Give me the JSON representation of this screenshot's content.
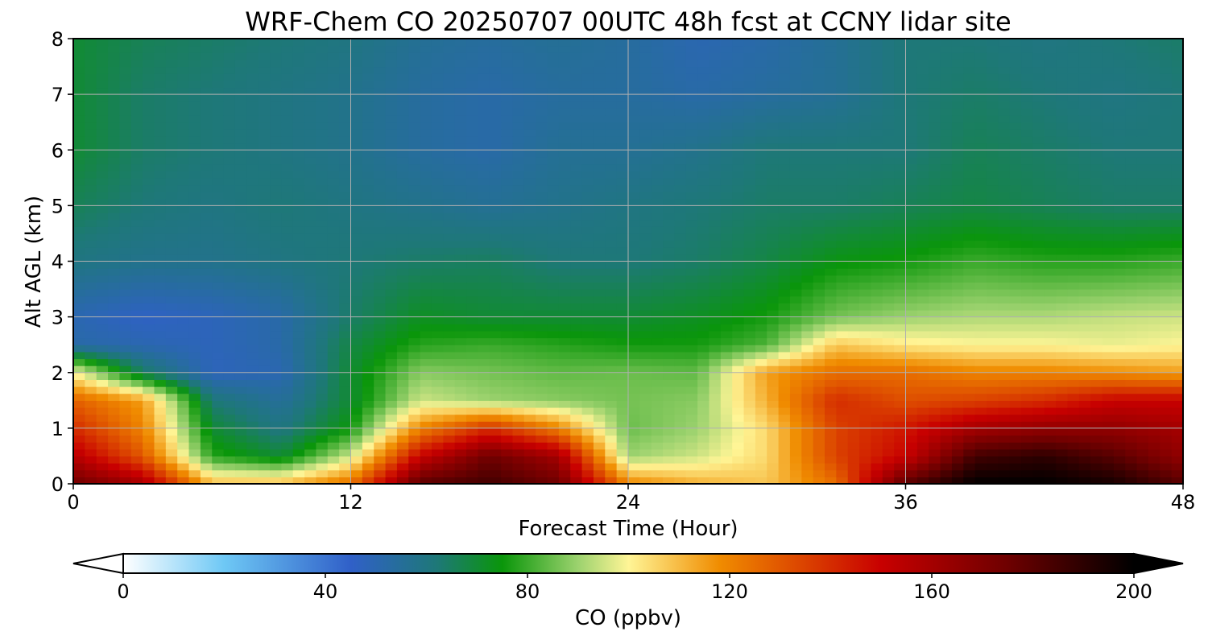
{
  "chart_data": {
    "type": "heatmap",
    "title": "WRF-Chem CO  20250707 00UTC 48h fcst at CCNY lidar site",
    "xlabel": "Forecast Time (Hour)",
    "ylabel": "Alt AGL (km)",
    "xlim": [
      0,
      48
    ],
    "ylim": [
      0,
      8
    ],
    "xticks": [
      0,
      12,
      24,
      36,
      48
    ],
    "yticks": [
      0,
      1,
      2,
      3,
      4,
      5,
      6,
      7,
      8
    ],
    "grid": true,
    "x": [
      0,
      3,
      6,
      9,
      12,
      15,
      18,
      21,
      24,
      27,
      30,
      33,
      36,
      39,
      42,
      45,
      48
    ],
    "y": [
      0,
      0.5,
      1,
      1.5,
      2,
      2.5,
      3,
      4,
      5,
      6,
      7,
      8
    ],
    "z": [
      [
        175,
        160,
        110,
        110,
        125,
        180,
        185,
        175,
        120,
        112,
        108,
        125,
        180,
        200,
        200,
        195,
        180
      ],
      [
        155,
        130,
        78,
        70,
        95,
        150,
        175,
        160,
        90,
        95,
        105,
        135,
        150,
        185,
        190,
        180,
        165
      ],
      [
        140,
        120,
        70,
        60,
        75,
        120,
        140,
        120,
        85,
        90,
        105,
        135,
        145,
        160,
        165,
        165,
        160
      ],
      [
        128,
        115,
        62,
        55,
        70,
        95,
        90,
        88,
        86,
        88,
        112,
        140,
        132,
        135,
        140,
        150,
        150
      ],
      [
        100,
        65,
        48,
        50,
        70,
        88,
        86,
        84,
        85,
        84,
        115,
        125,
        125,
        120,
        120,
        118,
        115
      ],
      [
        52,
        50,
        48,
        52,
        68,
        78,
        80,
        78,
        76,
        76,
        82,
        108,
        102,
        100,
        100,
        98,
        100
      ],
      [
        50,
        46,
        48,
        52,
        64,
        72,
        70,
        70,
        70,
        72,
        76,
        86,
        90,
        92,
        92,
        94,
        95
      ],
      [
        60,
        58,
        58,
        60,
        62,
        64,
        65,
        62,
        62,
        64,
        68,
        74,
        76,
        80,
        78,
        78,
        80
      ],
      [
        66,
        62,
        60,
        62,
        60,
        58,
        56,
        58,
        60,
        62,
        64,
        64,
        66,
        68,
        66,
        64,
        64
      ],
      [
        70,
        64,
        62,
        60,
        58,
        54,
        52,
        56,
        56,
        58,
        62,
        62,
        62,
        66,
        64,
        62,
        62
      ],
      [
        70,
        64,
        62,
        60,
        58,
        54,
        52,
        54,
        54,
        52,
        54,
        56,
        62,
        64,
        62,
        60,
        62
      ],
      [
        70,
        66,
        64,
        62,
        60,
        56,
        54,
        56,
        54,
        50,
        52,
        56,
        62,
        62,
        60,
        62,
        64
      ]
    ],
    "colorbar": {
      "label": "CO  (ppbv)",
      "min": 0,
      "max": 200,
      "ticks": [
        0,
        40,
        80,
        120,
        160,
        200
      ],
      "extend": "both",
      "orientation": "horizontal",
      "stops": [
        {
          "v": 0,
          "c": "#ffffff"
        },
        {
          "v": 20,
          "c": "#6ec8f5"
        },
        {
          "v": 45,
          "c": "#3060c8"
        },
        {
          "v": 62,
          "c": "#1e7878"
        },
        {
          "v": 75,
          "c": "#0a960a"
        },
        {
          "v": 90,
          "c": "#9cd26e"
        },
        {
          "v": 100,
          "c": "#fff596"
        },
        {
          "v": 118,
          "c": "#f08c00"
        },
        {
          "v": 150,
          "c": "#c80000"
        },
        {
          "v": 175,
          "c": "#6e0000"
        },
        {
          "v": 200,
          "c": "#000000"
        }
      ]
    }
  }
}
